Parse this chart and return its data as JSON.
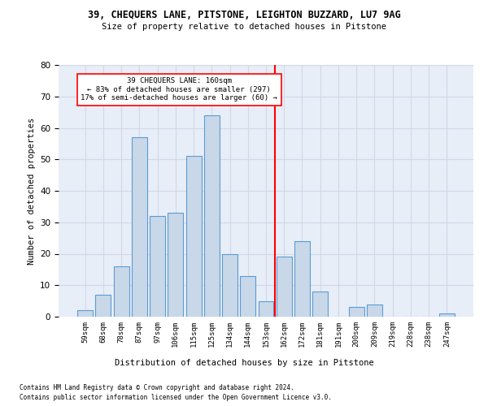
{
  "title": "39, CHEQUERS LANE, PITSTONE, LEIGHTON BUZZARD, LU7 9AG",
  "subtitle": "Size of property relative to detached houses in Pitstone",
  "xlabel": "Distribution of detached houses by size in Pitstone",
  "ylabel": "Number of detached properties",
  "bar_labels": [
    "59sqm",
    "68sqm",
    "78sqm",
    "87sqm",
    "97sqm",
    "106sqm",
    "115sqm",
    "125sqm",
    "134sqm",
    "144sqm",
    "153sqm",
    "162sqm",
    "172sqm",
    "181sqm",
    "191sqm",
    "200sqm",
    "209sqm",
    "219sqm",
    "228sqm",
    "238sqm",
    "247sqm"
  ],
  "bar_values": [
    2,
    7,
    16,
    57,
    32,
    33,
    51,
    64,
    20,
    13,
    5,
    19,
    24,
    8,
    0,
    3,
    4,
    0,
    0,
    0,
    1
  ],
  "bar_color": "#c8d8e8",
  "bar_edge_color": "#5b9bd5",
  "vline_x": 10.5,
  "vline_color": "red",
  "annotation_text": "39 CHEQUERS LANE: 160sqm\n← 83% of detached houses are smaller (297)\n17% of semi-detached houses are larger (60) →",
  "annotation_box_color": "white",
  "annotation_box_edge_color": "red",
  "ylim": [
    0,
    80
  ],
  "yticks": [
    0,
    10,
    20,
    30,
    40,
    50,
    60,
    70,
    80
  ],
  "grid_color": "#d0d8e8",
  "bg_color": "#e8eef8",
  "footer_line1": "Contains HM Land Registry data © Crown copyright and database right 2024.",
  "footer_line2": "Contains public sector information licensed under the Open Government Licence v3.0."
}
